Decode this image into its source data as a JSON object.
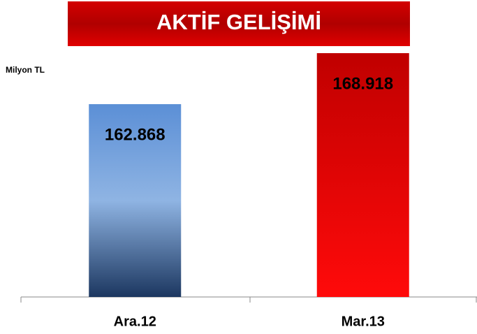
{
  "chart_data": {
    "type": "bar",
    "title": "AKTİF GELİŞİMİ",
    "y_label": "Milyon TL",
    "categories": [
      "Ara.12",
      "Mar.13"
    ],
    "values": [
      162868,
      168918
    ],
    "value_labels": [
      "162.868",
      "168.918"
    ],
    "colors": [
      "#5b8fd6",
      "#c00000"
    ],
    "ylim": [
      140000,
      170000
    ]
  }
}
